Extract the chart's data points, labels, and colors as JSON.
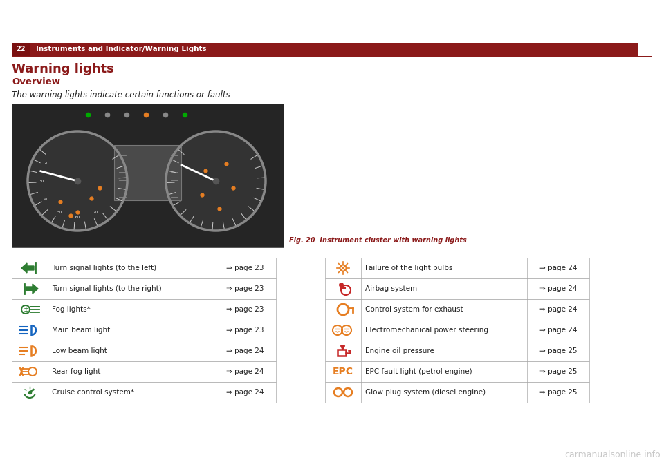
{
  "page_bg": "#ffffff",
  "header_bar_color": "#8b1a1a",
  "header_number": "22",
  "header_text": "Instruments and Indicator/Warning Lights",
  "section_title": "Warning lights",
  "section_title_color": "#8b1a1a",
  "subsection_title": "Overview",
  "subsection_title_color": "#8b1a1a",
  "intro_text": "The warning lights indicate certain functions or faults.",
  "fig_caption": "Fig. 20  Instrument cluster with warning lights",
  "fig_caption_color": "#8b1a1a",
  "table_left": [
    [
      "Turn signal lights (to the left)",
      "⇒ page 23"
    ],
    [
      "Turn signal lights (to the right)",
      "⇒ page 23"
    ],
    [
      "Fog lights*",
      "⇒ page 23"
    ],
    [
      "Main beam light",
      "⇒ page 23"
    ],
    [
      "Low beam light",
      "⇒ page 24"
    ],
    [
      "Rear fog light",
      "⇒ page 24"
    ],
    [
      "Cruise control system*",
      "⇒ page 24"
    ]
  ],
  "table_right": [
    [
      "Failure of the light bulbs",
      "⇒ page 24"
    ],
    [
      "Airbag system",
      "⇒ page 24"
    ],
    [
      "Control system for exhaust",
      "⇒ page 24"
    ],
    [
      "Electromechanical power steering",
      "⇒ page 24"
    ],
    [
      "Engine oil pressure",
      "⇒ page 25"
    ],
    [
      "EPC fault light (petrol engine)",
      "⇒ page 25"
    ],
    [
      "Glow plug system (diesel engine)",
      "⇒ page 25"
    ]
  ],
  "table_border_color": "#aaaaaa",
  "text_color": "#222222",
  "red_line_color": "#8b1a1a",
  "watermark_text": "carmanualsonline.info",
  "watermark_color": "#bbbbbb",
  "icon_green": "#2e7d32",
  "icon_orange": "#e67e22",
  "icon_blue": "#1565c0",
  "icon_red": "#c62828"
}
